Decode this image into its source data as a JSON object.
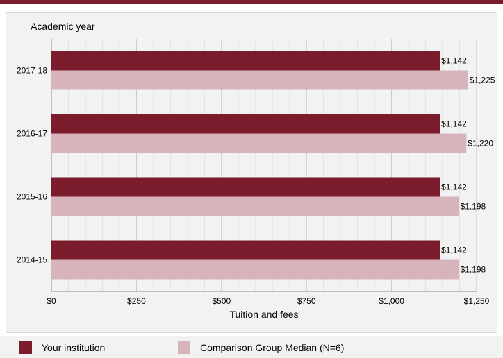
{
  "chart_data": {
    "type": "bar",
    "orientation": "horizontal",
    "category_axis_title": "Academic year",
    "xlabel": "Tuition and fees",
    "categories": [
      "2017-18",
      "2016-17",
      "2015-16",
      "2014-15"
    ],
    "series": [
      {
        "name": "Your institution",
        "values": [
          1142,
          1142,
          1142,
          1142
        ],
        "labels": [
          "$1,142",
          "$1,142",
          "$1,142",
          "$1,142"
        ],
        "color": "#7b1c2d"
      },
      {
        "name": "Comparison Group Median (N=6)",
        "values": [
          1225,
          1220,
          1198,
          1198
        ],
        "labels": [
          "$1,225",
          "$1,220",
          "$1,198",
          "$1,198"
        ],
        "color": "#d7b4bc"
      }
    ],
    "xlim": [
      0,
      1250
    ],
    "xticks": [
      0,
      250,
      500,
      750,
      1000,
      1250
    ],
    "xtick_labels": [
      "$0",
      "$250",
      "$500",
      "$750",
      "$1,000",
      "$1,250"
    ],
    "grid": true,
    "legend_position": "bottom"
  }
}
